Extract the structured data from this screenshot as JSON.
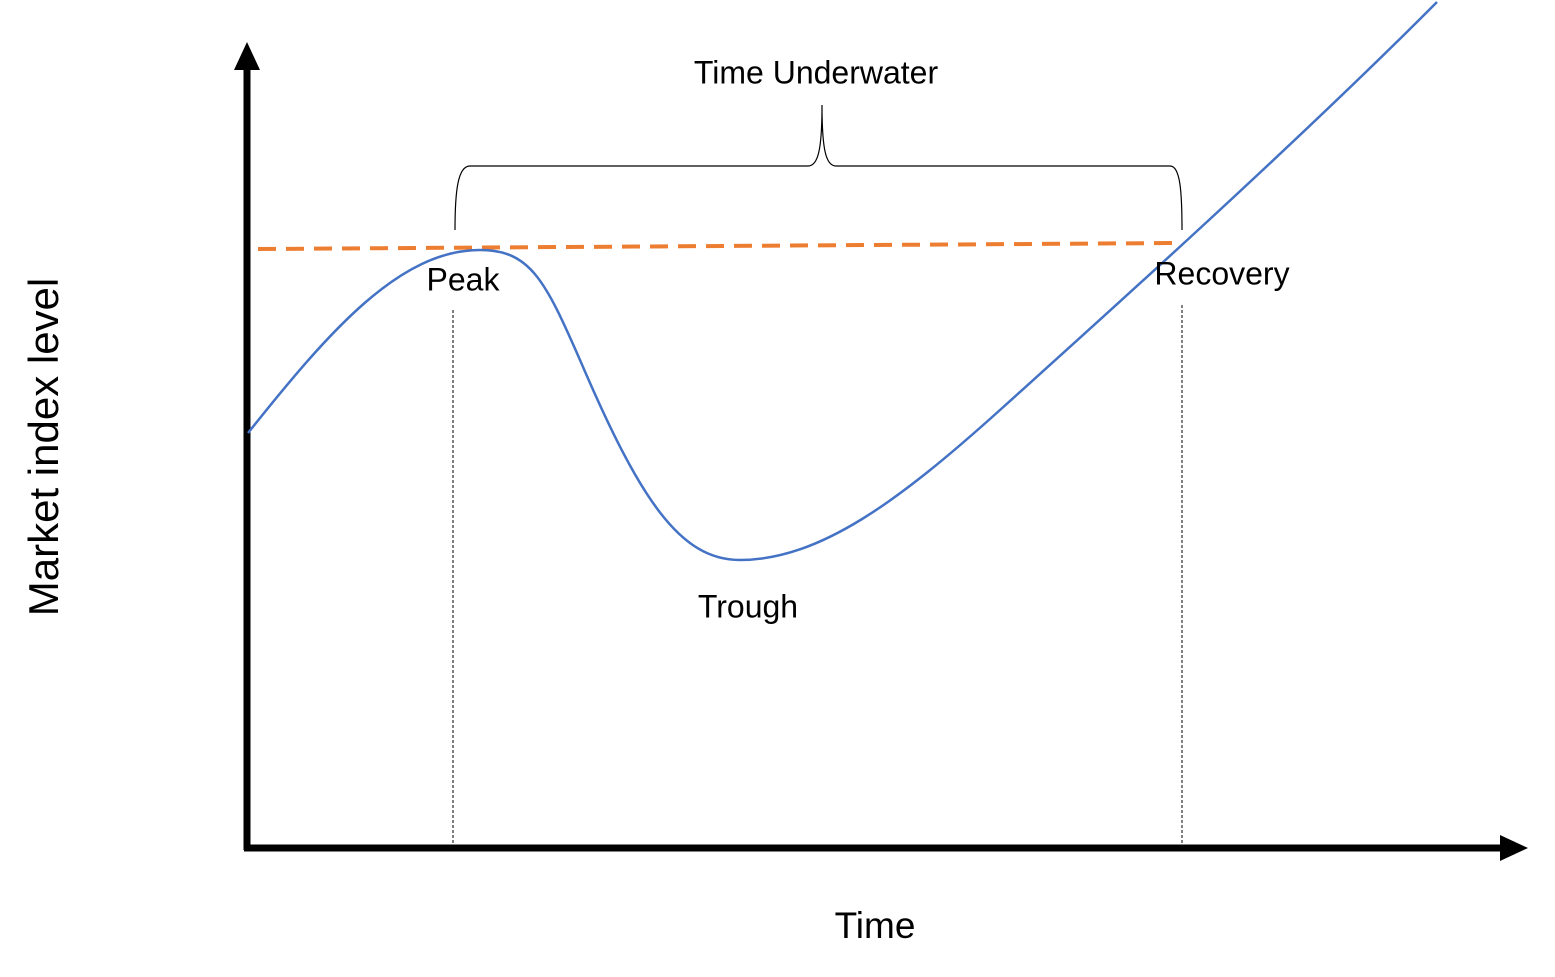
{
  "axes": {
    "y_label": "Market index level",
    "x_label": "Time"
  },
  "annotations": {
    "span": "Time Underwater",
    "peak": "Peak",
    "trough": "Trough",
    "recovery": "Recovery"
  }
}
